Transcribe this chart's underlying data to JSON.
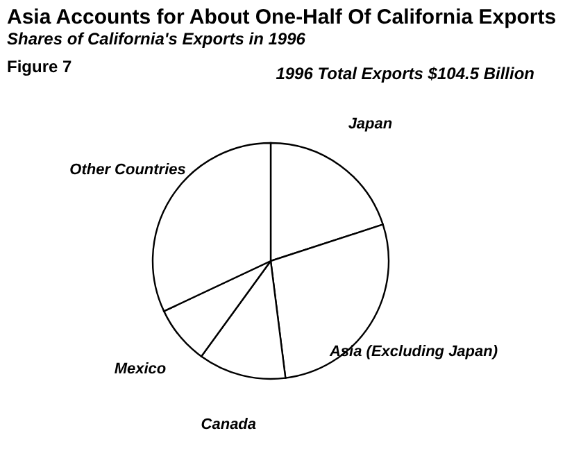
{
  "chart_data": {
    "type": "pie",
    "title": "Asia Accounts for About One-Half Of California Exports",
    "subtitle": "Shares of California's Exports in 1996",
    "categories": [
      "Japan",
      "Asia (Excluding Japan)",
      "Canada",
      "Mexico",
      "Other Countries"
    ],
    "values": [
      20,
      28,
      12,
      8,
      32
    ],
    "colors": [
      "#ffffff",
      "#ffffff",
      "#ffffff",
      "#ffffff",
      "#ffffff"
    ],
    "annotations": [
      "Figure 7",
      "1996 Total Exports $104.5 Billion"
    ],
    "legend": false
  }
}
